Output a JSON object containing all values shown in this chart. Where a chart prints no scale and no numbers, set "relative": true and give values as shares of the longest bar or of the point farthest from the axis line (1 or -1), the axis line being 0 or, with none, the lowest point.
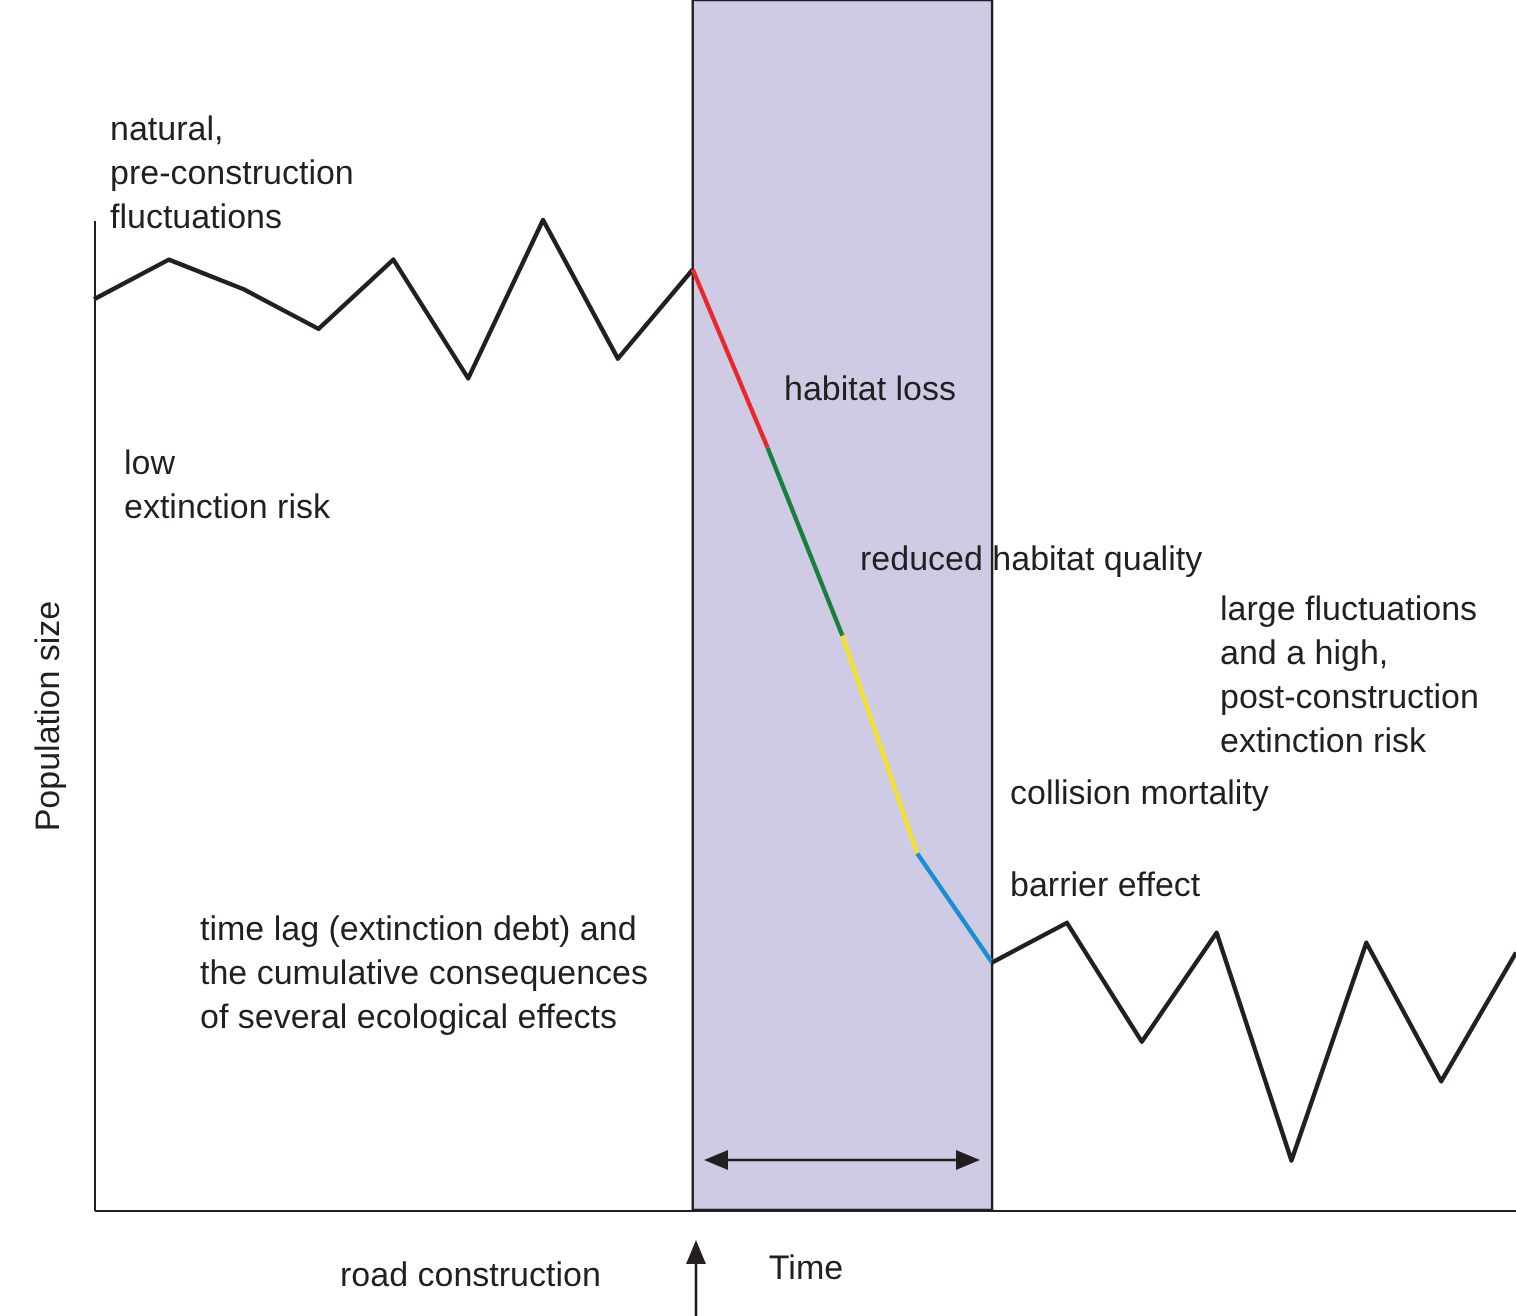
{
  "chart_data": {
    "type": "line",
    "relative": true,
    "xlabel": "Time",
    "ylabel": "Population size",
    "marker": "none",
    "line_style": "solid",
    "categories": [
      null,
      null,
      null,
      null,
      null,
      null,
      null,
      null,
      null,
      null,
      null,
      null,
      null,
      null,
      null,
      null,
      null,
      null,
      null,
      null
    ],
    "series": [
      {
        "color": "#231f20",
        "values": [
          0.92,
          0.96,
          0.93,
          0.89,
          0.96,
          0.84,
          1,
          0.86,
          0.95,
          null,
          null,
          null,
          null,
          null,
          null,
          null,
          null,
          null,
          null,
          null
        ]
      },
      {
        "color": "#e8282b",
        "values": [
          null,
          null,
          null,
          null,
          null,
          null,
          null,
          null,
          0.95,
          0.77,
          null,
          null,
          null,
          null,
          null,
          null,
          null,
          null,
          null,
          null
        ]
      },
      {
        "color": "#1a7f3c",
        "values": [
          null,
          null,
          null,
          null,
          null,
          null,
          null,
          null,
          null,
          0.77,
          0.58,
          null,
          null,
          null,
          null,
          null,
          null,
          null,
          null,
          null
        ]
      },
      {
        "color": "#f1e22a",
        "values": [
          null,
          null,
          null,
          null,
          null,
          null,
          null,
          null,
          null,
          null,
          0.58,
          0.36,
          null,
          null,
          null,
          null,
          null,
          null,
          null,
          null
        ]
      },
      {
        "color": "#1a8fd0",
        "values": [
          null,
          null,
          null,
          null,
          null,
          null,
          null,
          null,
          null,
          null,
          null,
          0.36,
          0.25,
          null,
          null,
          null,
          null,
          null,
          null,
          null
        ]
      },
      {
        "color": "#231f20",
        "values": [
          null,
          null,
          null,
          null,
          null,
          null,
          null,
          null,
          null,
          null,
          null,
          null,
          0.25,
          0.29,
          0.17,
          0.28,
          0.05,
          0.27,
          0.13,
          0.26
        ]
      }
    ],
    "annotations": [
      "natural,\npre-construction\nfluctuations",
      "low\nextinction risk",
      "habitat loss",
      "reduced habitat quality",
      "collision mortality",
      "barrier effect",
      "large fluctuations\nand a high,\npost-construction\nextinction risk",
      "time lag (extinction debt) and\nthe cumulative consequences\nof several ecological effects",
      "road construction"
    ]
  }
}
